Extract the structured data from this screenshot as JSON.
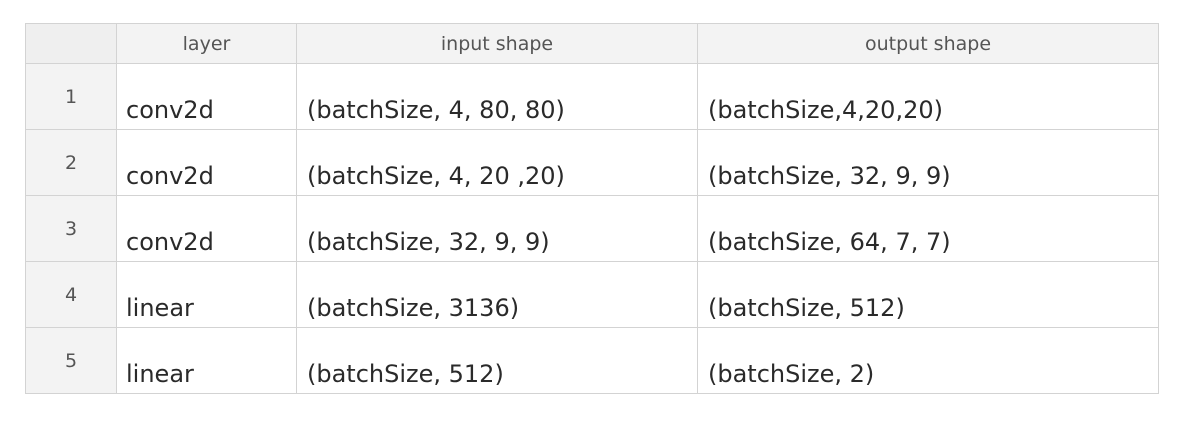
{
  "table": {
    "headers": {
      "corner": "",
      "layer": "layer",
      "input_shape": "input shape",
      "output_shape": "output shape"
    },
    "rows": [
      {
        "index": "1",
        "layer": "conv2d",
        "input_shape": "(batchSize, 4, 80, 80)",
        "output_shape": "(batchSize,4,20,20)"
      },
      {
        "index": "2",
        "layer": "conv2d",
        "input_shape": "(batchSize, 4, 20 ,20)",
        "output_shape": "(batchSize, 32, 9, 9)"
      },
      {
        "index": "3",
        "layer": "conv2d",
        "input_shape": "(batchSize, 32, 9, 9)",
        "output_shape": "(batchSize, 64, 7, 7)"
      },
      {
        "index": "4",
        "layer": "linear",
        "input_shape": "(batchSize, 3136)",
        "output_shape": "(batchSize, 512)"
      },
      {
        "index": "5",
        "layer": "linear",
        "input_shape": "(batchSize, 512)",
        "output_shape": "(batchSize, 2)"
      }
    ]
  },
  "colors": {
    "header_background": "#f3f3f3",
    "grid_line": "#d3d3d3",
    "text": "#2a2a2a"
  }
}
